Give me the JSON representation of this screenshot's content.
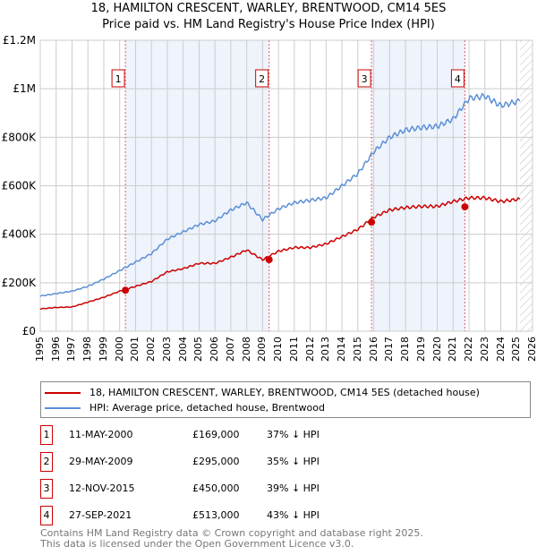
{
  "chart_data": {
    "type": "line",
    "title": "18, HAMILTON CRESCENT, WARLEY, BRENTWOOD, CM14 5ES",
    "subtitle": "Price paid vs. HM Land Registry's House Price Index (HPI)",
    "xlim": [
      1995,
      2026
    ],
    "ylim": [
      0,
      1200000
    ],
    "y_ticks": [
      {
        "v": 0,
        "label": "£0"
      },
      {
        "v": 200000,
        "label": "£200K"
      },
      {
        "v": 400000,
        "label": "£400K"
      },
      {
        "v": 600000,
        "label": "£600K"
      },
      {
        "v": 800000,
        "label": "£800K"
      },
      {
        "v": 1000000,
        "label": "£1M"
      },
      {
        "v": 1200000,
        "label": "£1.2M"
      }
    ],
    "x_ticks": [
      "1995",
      "1996",
      "1997",
      "1998",
      "1999",
      "2000",
      "2001",
      "2002",
      "2003",
      "2004",
      "2005",
      "2006",
      "2007",
      "2008",
      "2009",
      "2010",
      "2011",
      "2012",
      "2013",
      "2014",
      "2015",
      "2016",
      "2017",
      "2018",
      "2019",
      "2020",
      "2021",
      "2022",
      "2023",
      "2024",
      "2025",
      "2026"
    ],
    "grid": true,
    "series": [
      {
        "name": "18, HAMILTON CRESCENT, WARLEY, BRENTWOOD, CM14 5ES (detached house)",
        "color": "#cc0000",
        "x": [
          1995,
          1996,
          1997,
          1998,
          1999,
          2000,
          2001,
          2002,
          2003,
          2004,
          2005,
          2006,
          2007,
          2008,
          2009,
          2010,
          2011,
          2012,
          2013,
          2014,
          2015,
          2016,
          2017,
          2018,
          2019,
          2020,
          2021,
          2022,
          2023,
          2024,
          2025.2
        ],
        "values": [
          92000,
          98000,
          100000,
          120000,
          140000,
          165000,
          185000,
          205000,
          245000,
          258000,
          280000,
          280000,
          305000,
          335000,
          295000,
          330000,
          345000,
          345000,
          360000,
          390000,
          420000,
          470000,
          500000,
          510000,
          515000,
          515000,
          535000,
          550000,
          550000,
          535000,
          545000
        ]
      },
      {
        "name": "HPI: Average price, detached house, Brentwood",
        "color": "#5b8fd6",
        "x": [
          1995,
          1996,
          1997,
          1998,
          1999,
          2000,
          2001,
          2002,
          2003,
          2004,
          2005,
          2006,
          2007,
          2008,
          2009,
          2010,
          2011,
          2012,
          2013,
          2014,
          2015,
          2016,
          2017,
          2018,
          2019,
          2020,
          2021,
          2022,
          2023,
          2024,
          2025.2
        ],
        "values": [
          145000,
          155000,
          165000,
          185000,
          215000,
          250000,
          285000,
          320000,
          380000,
          410000,
          440000,
          455000,
          500000,
          530000,
          460000,
          505000,
          530000,
          540000,
          550000,
          600000,
          650000,
          740000,
          800000,
          830000,
          840000,
          845000,
          875000,
          960000,
          970000,
          930000,
          950000
        ]
      }
    ],
    "sales": [
      {
        "n": "1",
        "x": 2000.36,
        "date": "11-MAY-2000",
        "price_value": 169000,
        "price": "£169,000",
        "hpi": "37% ↓ HPI"
      },
      {
        "n": "2",
        "x": 2009.41,
        "date": "29-MAY-2009",
        "price_value": 295000,
        "price": "£295,000",
        "hpi": "35% ↓ HPI"
      },
      {
        "n": "3",
        "x": 2015.86,
        "date": "12-NOV-2015",
        "price_value": 450000,
        "price": "£450,000",
        "hpi": "39% ↓ HPI"
      },
      {
        "n": "4",
        "x": 2021.74,
        "date": "27-SEP-2021",
        "price_value": 513000,
        "price": "£513,000",
        "hpi": "43% ↓ HPI"
      }
    ],
    "forecast_start": 2025.2
  },
  "footer": {
    "line1": "Contains HM Land Registry data © Crown copyright and database right 2025.",
    "line2": "This data is licensed under the Open Government Licence v3.0."
  }
}
